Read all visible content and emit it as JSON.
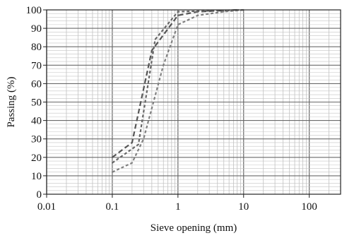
{
  "chart_data": {
    "type": "line",
    "xlabel": "Sieve opening (mm)",
    "ylabel": "Passing (%)",
    "xscale": "log",
    "xlim": [
      0.01,
      300
    ],
    "ylim": [
      0,
      100
    ],
    "x_ticks": [
      {
        "value": 0.01,
        "label": "0.01"
      },
      {
        "value": 0.1,
        "label": "0.1"
      },
      {
        "value": 1,
        "label": "1"
      },
      {
        "value": 10,
        "label": "10"
      },
      {
        "value": 100,
        "label": "100"
      }
    ],
    "y_ticks": [
      0,
      10,
      20,
      30,
      40,
      50,
      60,
      70,
      80,
      90,
      100
    ],
    "grid": true,
    "series": [
      {
        "color": "#555555",
        "dash": "7 4",
        "points": [
          {
            "x": 0.1,
            "y": 20
          },
          {
            "x": 0.2,
            "y": 28
          },
          {
            "x": 0.4,
            "y": 78
          },
          {
            "x": 1,
            "y": 97
          },
          {
            "x": 2,
            "y": 99
          },
          {
            "x": 8,
            "y": 100
          }
        ]
      },
      {
        "color": "#666666",
        "dash": "4 3",
        "points": [
          {
            "x": 0.1,
            "y": 17
          },
          {
            "x": 0.25,
            "y": 27
          },
          {
            "x": 0.45,
            "y": 84
          },
          {
            "x": 1,
            "y": 99
          },
          {
            "x": 10,
            "y": 100
          }
        ]
      },
      {
        "color": "#808080",
        "dash": "4 3",
        "points": [
          {
            "x": 0.1,
            "y": 12
          },
          {
            "x": 0.2,
            "y": 17
          },
          {
            "x": 0.3,
            "y": 30
          },
          {
            "x": 0.6,
            "y": 70
          },
          {
            "x": 1,
            "y": 92
          },
          {
            "x": 2,
            "y": 97
          },
          {
            "x": 5,
            "y": 99
          },
          {
            "x": 10,
            "y": 100
          }
        ]
      }
    ]
  }
}
